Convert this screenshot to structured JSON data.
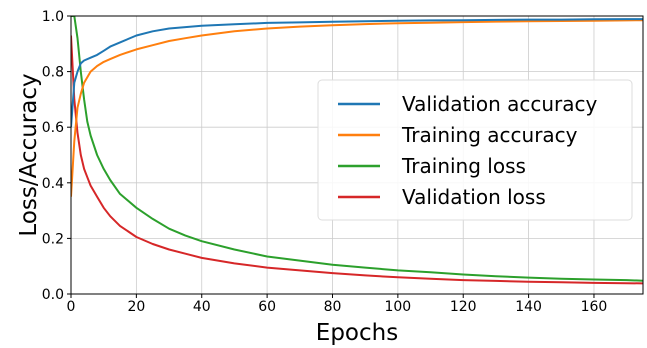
{
  "chart_data": {
    "type": "line",
    "title": "",
    "xlabel": "Epochs",
    "ylabel": "Loss/Accuracy",
    "xlim": [
      0,
      175
    ],
    "ylim": [
      0.0,
      1.0
    ],
    "xticks": [
      "0",
      "20",
      "40",
      "60",
      "80",
      "100",
      "120",
      "140",
      "160"
    ],
    "yticks": [
      "0.0",
      "0.2",
      "0.4",
      "0.6",
      "0.8",
      "1.0"
    ],
    "grid": true,
    "legend_position": "center-right",
    "series": [
      {
        "name": "Validation accuracy",
        "color": "#1f77b4",
        "x": [
          0,
          1,
          2,
          3,
          4,
          6,
          8,
          10,
          12,
          15,
          20,
          25,
          30,
          35,
          40,
          50,
          60,
          70,
          80,
          90,
          100,
          110,
          120,
          130,
          140,
          150,
          160,
          170,
          175
        ],
        "y": [
          0.6,
          0.76,
          0.8,
          0.83,
          0.84,
          0.85,
          0.86,
          0.875,
          0.89,
          0.905,
          0.93,
          0.945,
          0.955,
          0.96,
          0.965,
          0.97,
          0.975,
          0.977,
          0.979,
          0.981,
          0.983,
          0.984,
          0.985,
          0.986,
          0.987,
          0.987,
          0.988,
          0.989,
          0.989
        ]
      },
      {
        "name": "Training accuracy",
        "color": "#ff7f0e",
        "x": [
          0,
          1,
          2,
          3,
          4,
          6,
          8,
          10,
          12,
          15,
          20,
          25,
          30,
          35,
          40,
          50,
          60,
          70,
          80,
          90,
          100,
          110,
          120,
          130,
          140,
          150,
          160,
          170,
          175
        ],
        "y": [
          0.35,
          0.55,
          0.67,
          0.72,
          0.76,
          0.8,
          0.82,
          0.835,
          0.845,
          0.86,
          0.88,
          0.895,
          0.91,
          0.92,
          0.93,
          0.945,
          0.955,
          0.962,
          0.967,
          0.971,
          0.974,
          0.976,
          0.978,
          0.98,
          0.981,
          0.982,
          0.983,
          0.984,
          0.985
        ]
      },
      {
        "name": "Training loss",
        "color": "#2ca02c",
        "x": [
          0,
          1,
          2,
          3,
          4,
          5,
          6,
          8,
          10,
          12,
          15,
          20,
          25,
          30,
          35,
          40,
          50,
          60,
          70,
          80,
          90,
          100,
          110,
          120,
          130,
          140,
          150,
          160,
          170,
          175
        ],
        "y": [
          1.0,
          1.0,
          0.92,
          0.8,
          0.7,
          0.62,
          0.57,
          0.5,
          0.45,
          0.41,
          0.36,
          0.31,
          0.27,
          0.235,
          0.21,
          0.19,
          0.16,
          0.135,
          0.12,
          0.105,
          0.095,
          0.085,
          0.078,
          0.07,
          0.064,
          0.059,
          0.055,
          0.052,
          0.05,
          0.048
        ]
      },
      {
        "name": "Validation loss",
        "color": "#d62728",
        "x": [
          0,
          1,
          2,
          3,
          4,
          5,
          6,
          8,
          10,
          12,
          15,
          20,
          25,
          30,
          35,
          40,
          50,
          60,
          70,
          80,
          90,
          100,
          110,
          120,
          130,
          140,
          150,
          160,
          170,
          175
        ],
        "y": [
          0.93,
          0.7,
          0.58,
          0.5,
          0.45,
          0.42,
          0.39,
          0.35,
          0.31,
          0.28,
          0.245,
          0.205,
          0.18,
          0.16,
          0.145,
          0.13,
          0.11,
          0.095,
          0.085,
          0.075,
          0.067,
          0.06,
          0.055,
          0.05,
          0.047,
          0.044,
          0.042,
          0.04,
          0.039,
          0.038
        ]
      }
    ]
  }
}
